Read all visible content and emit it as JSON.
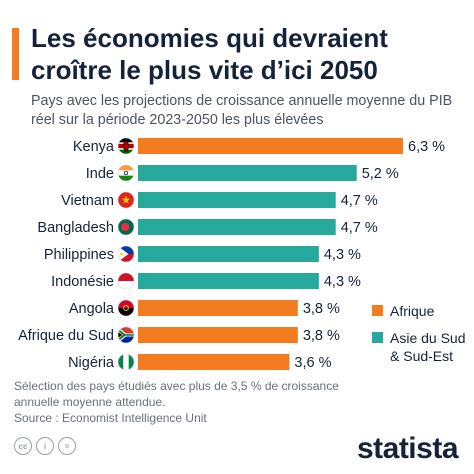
{
  "title": "Les économies qui devraient croître le plus vite d’ici 2050",
  "subtitle": "Pays avec les projections de croissance annuelle moyenne du PIB réel sur la période 2023-2050 les plus élevées",
  "chart_data": {
    "type": "bar",
    "orientation": "horizontal",
    "categories": [
      "Kenya",
      "Inde",
      "Vietnam",
      "Bangladesh",
      "Philippines",
      "Indonésie",
      "Angola",
      "Afrique du Sud",
      "Nigéria"
    ],
    "values": [
      6.3,
      5.2,
      4.7,
      4.7,
      4.3,
      4.3,
      3.8,
      3.8,
      3.6
    ],
    "value_labels": [
      "6,3 %",
      "5,2 %",
      "4,7 %",
      "4,7 %",
      "4,3 %",
      "4,3 %",
      "3,8 %",
      "3,8 %",
      "3,6 %"
    ],
    "groups": [
      "Afrique",
      "Asie du Sud & Sud-Est",
      "Asie du Sud & Sud-Est",
      "Asie du Sud & Sud-Est",
      "Asie du Sud & Sud-Est",
      "Asie du Sud & Sud-Est",
      "Afrique",
      "Afrique",
      "Afrique"
    ],
    "xlim": [
      0,
      6.3
    ],
    "grid": false,
    "legend_position": "bottom-right"
  },
  "legend": [
    {
      "label": "Afrique",
      "color": "#f47c20"
    },
    {
      "label": "Asie du Sud & Sud-Est",
      "color": "#27a99d"
    }
  ],
  "colors": {
    "Afrique": "#f47c20",
    "Asie du Sud & Sud-Est": "#27a99d",
    "text": "#15233a"
  },
  "flags": [
    "kenya-flag",
    "india-flag",
    "vietnam-flag",
    "bangladesh-flag",
    "philippines-flag",
    "indonesia-flag",
    "angola-flag",
    "south-africa-flag",
    "nigeria-flag"
  ],
  "note_lines": [
    "Sélection des pays étudiés avec plus de 3,5 % de croissance annuelle moyenne attendue.",
    "Source : Economist Intelligence Unit"
  ],
  "footer_icons": [
    {
      "name": "cc-icon",
      "text": "cc"
    },
    {
      "name": "attribution-icon",
      "text": "i"
    },
    {
      "name": "equals-icon",
      "text": "="
    }
  ],
  "brand": "statista"
}
